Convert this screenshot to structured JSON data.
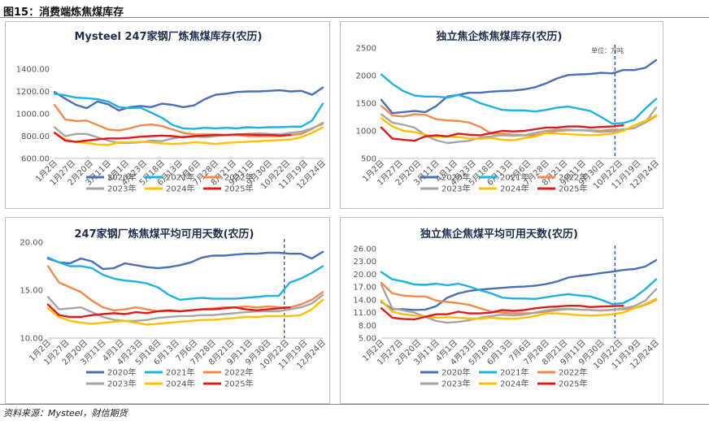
{
  "figure": {
    "title": "图15：消费端炼焦煤库存",
    "source": "资料来源：Mysteel，财信期货"
  },
  "colors": {
    "2020年": "#4a6fb5",
    "2021年": "#1eb1e6",
    "2022年": "#f4894c",
    "2023年": "#a6a6a6",
    "2024年": "#ffc000",
    "2025年": "#e01a1a"
  },
  "x_labels": [
    "1月2日",
    "1月27日",
    "2月20日",
    "3月11日",
    "4月1日",
    "4月23日",
    "5月18日",
    "6月13日",
    "7月6日",
    "7月28日",
    "8月21日",
    "9月11日",
    "9月30日",
    "10月22日",
    "11月19日",
    "12月24日"
  ],
  "chart_data": [
    {
      "type": "line",
      "title": "Mysteel 247家钢厂炼焦煤库存(农历)",
      "unit": "",
      "ylim": [
        600,
        1400
      ],
      "yticks": [
        "600.00",
        "800.00",
        "1000.00",
        "1200.00",
        "1400.00"
      ],
      "ytick_values": [
        600,
        800,
        1000,
        1200,
        1400
      ],
      "x": [
        0,
        2,
        4,
        6,
        8,
        10,
        12,
        14,
        16,
        18,
        20,
        22,
        24,
        26,
        28,
        30,
        32,
        34,
        36,
        38,
        40,
        42,
        44,
        46,
        48,
        50
      ],
      "vline": null,
      "series": [
        {
          "name": "2020年",
          "values": [
            1195,
            1135,
            1080,
            1050,
            1110,
            1085,
            1030,
            1060,
            1070,
            1060,
            1090,
            1080,
            1060,
            1075,
            1130,
            1170,
            1180,
            1195,
            1200,
            1200,
            1205,
            1210,
            1200,
            1205,
            1170,
            1235
          ]
        },
        {
          "name": "2021年",
          "values": [
            1180,
            1165,
            1145,
            1140,
            1130,
            1110,
            1060,
            1050,
            1055,
            1010,
            965,
            900,
            870,
            865,
            875,
            870,
            875,
            870,
            880,
            875,
            880,
            880,
            885,
            885,
            940,
            1090
          ]
        },
        {
          "name": "2022年",
          "values": [
            1080,
            950,
            935,
            940,
            900,
            860,
            850,
            870,
            895,
            905,
            890,
            860,
            830,
            815,
            815,
            815,
            810,
            810,
            800,
            800,
            800,
            800,
            810,
            820,
            865,
            920
          ]
        },
        {
          "name": "2023年",
          "values": [
            880,
            800,
            820,
            820,
            790,
            760,
            740,
            740,
            745,
            760,
            755,
            780,
            795,
            800,
            790,
            800,
            810,
            815,
            820,
            825,
            820,
            815,
            830,
            840,
            870,
            910
          ]
        },
        {
          "name": "2024年",
          "values": [
            830,
            770,
            745,
            740,
            725,
            720,
            745,
            745,
            750,
            745,
            735,
            730,
            735,
            745,
            740,
            730,
            740,
            745,
            750,
            755,
            760,
            765,
            770,
            790,
            830,
            880
          ]
        },
        {
          "name": "2025年",
          "values": [
            830,
            760,
            750,
            760,
            770,
            780,
            780,
            785,
            795,
            800,
            805,
            800,
            790,
            800,
            805,
            810,
            810,
            815,
            815,
            810,
            810,
            805,
            810,
            null,
            null,
            null
          ]
        }
      ]
    },
    {
      "type": "line",
      "title": "独立焦企炼焦煤库存(农历)",
      "unit": "单位：万吨",
      "ylim": [
        500,
        2500
      ],
      "yticks": [
        "500",
        "1000",
        "1500",
        "2000",
        "2500"
      ],
      "ytick_values": [
        500,
        1000,
        1500,
        2000,
        2500
      ],
      "x": [
        0,
        2,
        4,
        6,
        8,
        10,
        12,
        14,
        16,
        18,
        20,
        22,
        24,
        26,
        28,
        30,
        32,
        34,
        36,
        38,
        40,
        42,
        44,
        46,
        48,
        50
      ],
      "vline": 42.5,
      "series": [
        {
          "name": "2020年",
          "values": [
            1560,
            1320,
            1340,
            1360,
            1340,
            1450,
            1620,
            1650,
            1690,
            1690,
            1710,
            1720,
            1730,
            1750,
            1790,
            1860,
            1950,
            2010,
            2020,
            2030,
            2050,
            2040,
            2100,
            2100,
            2140,
            2280
          ]
        },
        {
          "name": "2021年",
          "values": [
            2020,
            1850,
            1720,
            1640,
            1620,
            1620,
            1600,
            1650,
            1590,
            1500,
            1440,
            1380,
            1370,
            1370,
            1350,
            1380,
            1420,
            1440,
            1400,
            1360,
            1250,
            1130,
            1140,
            1200,
            1400,
            1580
          ]
        },
        {
          "name": "2022年",
          "values": [
            1450,
            1280,
            1260,
            1300,
            1290,
            1210,
            1190,
            1180,
            1150,
            1070,
            950,
            950,
            930,
            920,
            920,
            960,
            1000,
            1010,
            1010,
            1010,
            1000,
            1020,
            1020,
            1050,
            1150,
            1270
          ]
        },
        {
          "name": "2023年",
          "values": [
            1300,
            1150,
            1110,
            1060,
            920,
            830,
            780,
            800,
            820,
            880,
            900,
            920,
            910,
            920,
            960,
            1000,
            1020,
            1020,
            1010,
            1000,
            980,
            990,
            1030,
            1050,
            1150,
            1420
          ]
        },
        {
          "name": "2024年",
          "values": [
            1230,
            1080,
            1000,
            980,
            930,
            890,
            900,
            890,
            860,
            860,
            870,
            840,
            830,
            870,
            900,
            960,
            950,
            940,
            930,
            920,
            930,
            950,
            1000,
            1100,
            1180,
            1280
          ]
        },
        {
          "name": "2025年",
          "values": [
            1060,
            860,
            840,
            820,
            900,
            920,
            900,
            950,
            930,
            920,
            960,
            1000,
            990,
            1000,
            1030,
            1060,
            1060,
            1080,
            1080,
            1060,
            1070,
            1080,
            1100,
            null,
            null,
            null
          ]
        }
      ]
    },
    {
      "type": "line",
      "title": "247家钢厂炼焦煤平均可用天数(农历)",
      "unit": "",
      "ylim": [
        10,
        20
      ],
      "yticks": [
        "10.00",
        "15.00",
        "20.00"
      ],
      "ytick_values": [
        10,
        15,
        20
      ],
      "x": [
        0,
        2,
        4,
        6,
        8,
        10,
        12,
        14,
        16,
        18,
        20,
        22,
        24,
        26,
        28,
        30,
        32,
        34,
        36,
        38,
        40,
        42,
        44,
        46,
        48,
        50
      ],
      "vline": 43,
      "series": [
        {
          "name": "2020年",
          "values": [
            18.3,
            17.9,
            17.8,
            18.3,
            18.0,
            17.2,
            17.3,
            17.8,
            17.6,
            17.4,
            17.3,
            17.4,
            17.6,
            17.9,
            18.4,
            18.6,
            18.6,
            18.7,
            18.8,
            18.8,
            18.9,
            18.9,
            18.8,
            18.8,
            18.3,
            19.0
          ]
        },
        {
          "name": "2021年",
          "values": [
            18.4,
            17.9,
            17.5,
            17.5,
            17.3,
            16.6,
            16.2,
            16.0,
            15.9,
            15.7,
            15.3,
            14.5,
            14.0,
            14.1,
            14.2,
            14.1,
            14.1,
            14.1,
            14.2,
            14.3,
            14.4,
            14.4,
            15.8,
            16.2,
            16.8,
            17.5
          ]
        },
        {
          "name": "2022年",
          "values": [
            17.5,
            15.8,
            15.3,
            14.8,
            13.9,
            13.2,
            12.9,
            13.0,
            13.2,
            13.0,
            12.8,
            12.8,
            12.8,
            12.9,
            13.0,
            13.1,
            13.2,
            13.2,
            13.3,
            13.2,
            13.3,
            13.2,
            13.2,
            13.5,
            14.0,
            14.8
          ]
        },
        {
          "name": "2023年",
          "values": [
            14.3,
            13.0,
            13.1,
            13.2,
            12.7,
            12.2,
            11.9,
            11.8,
            11.8,
            11.9,
            12.1,
            12.2,
            12.3,
            12.3,
            12.4,
            12.4,
            12.5,
            12.6,
            12.7,
            12.8,
            12.8,
            12.8,
            13.0,
            13.2,
            13.6,
            14.5
          ]
        },
        {
          "name": "2024年",
          "values": [
            13.1,
            12.2,
            11.8,
            11.6,
            11.5,
            11.6,
            11.7,
            11.8,
            11.6,
            11.4,
            11.5,
            11.6,
            11.7,
            11.8,
            11.9,
            11.9,
            12.0,
            12.1,
            12.2,
            12.2,
            12.3,
            12.3,
            12.3,
            12.4,
            13.0,
            14.0
          ]
        },
        {
          "name": "2025年",
          "values": [
            13.5,
            12.4,
            12.2,
            12.2,
            12.4,
            12.5,
            12.6,
            12.5,
            12.7,
            12.6,
            12.8,
            12.9,
            12.8,
            12.9,
            13.0,
            13.0,
            13.1,
            13.2,
            13.0,
            12.9,
            13.0,
            13.1,
            13.2,
            null,
            null,
            null
          ]
        }
      ]
    },
    {
      "type": "line",
      "title": "独立焦企焦煤平均可用天数(农历)",
      "unit": "",
      "ylim": [
        5,
        26
      ],
      "yticks": [
        "5.00",
        "8.00",
        "11.00",
        "14.00",
        "17.00",
        "20.00",
        "23.00",
        "26.00"
      ],
      "ytick_values": [
        5,
        8,
        11,
        14,
        17,
        20,
        23,
        26
      ],
      "x": [
        0,
        2,
        4,
        6,
        8,
        10,
        12,
        14,
        16,
        18,
        20,
        22,
        24,
        26,
        28,
        30,
        32,
        34,
        36,
        38,
        40,
        42,
        44,
        46,
        48,
        50
      ],
      "vline": 42.5,
      "series": [
        {
          "name": "2020年",
          "values": [
            13.5,
            11.8,
            11.8,
            11.6,
            11.7,
            12.5,
            14.5,
            15.5,
            16.1,
            16.4,
            16.6,
            16.8,
            17.0,
            17.1,
            17.3,
            17.7,
            18.3,
            19.2,
            19.6,
            19.9,
            20.3,
            20.6,
            21.0,
            21.2,
            21.8,
            23.3
          ]
        },
        {
          "name": "2021年",
          "values": [
            20.5,
            18.8,
            18.3,
            17.6,
            17.5,
            17.8,
            17.4,
            17.8,
            17.1,
            16.2,
            15.5,
            14.5,
            14.3,
            14.3,
            14.2,
            14.6,
            15.0,
            15.3,
            15.0,
            14.8,
            14.0,
            13.0,
            13.2,
            14.5,
            16.5,
            18.8
          ]
        },
        {
          "name": "2022年",
          "values": [
            18.0,
            15.5,
            15.0,
            14.8,
            14.8,
            13.8,
            13.5,
            13.2,
            12.8,
            12.0,
            11.2,
            11.0,
            10.8,
            10.8,
            10.9,
            11.2,
            11.6,
            11.8,
            11.7,
            11.6,
            11.5,
            11.7,
            11.8,
            12.0,
            12.8,
            14.0
          ]
        },
        {
          "name": "2023年",
          "values": [
            17.5,
            12.0,
            11.5,
            11.0,
            10.0,
            9.0,
            8.6,
            8.8,
            9.2,
            9.8,
            10.2,
            10.5,
            10.3,
            10.5,
            11.0,
            11.5,
            11.8,
            11.9,
            11.7,
            11.6,
            11.5,
            11.6,
            12.0,
            12.5,
            13.8,
            16.5
          ]
        },
        {
          "name": "2024年",
          "values": [
            13.8,
            11.2,
            10.6,
            10.3,
            10.1,
            9.8,
            9.9,
            9.8,
            9.6,
            9.6,
            9.8,
            9.6,
            9.5,
            9.8,
            10.2,
            10.8,
            10.8,
            10.6,
            10.4,
            10.3,
            10.4,
            10.6,
            11.0,
            12.0,
            13.0,
            14.2
          ]
        },
        {
          "name": "2025年",
          "values": [
            12.0,
            9.8,
            9.5,
            9.4,
            10.0,
            10.6,
            10.6,
            11.2,
            10.8,
            10.8,
            11.0,
            11.6,
            11.4,
            11.6,
            12.0,
            12.3,
            12.4,
            12.6,
            12.6,
            12.3,
            12.4,
            12.5,
            12.6,
            null,
            null,
            null
          ]
        }
      ]
    }
  ]
}
